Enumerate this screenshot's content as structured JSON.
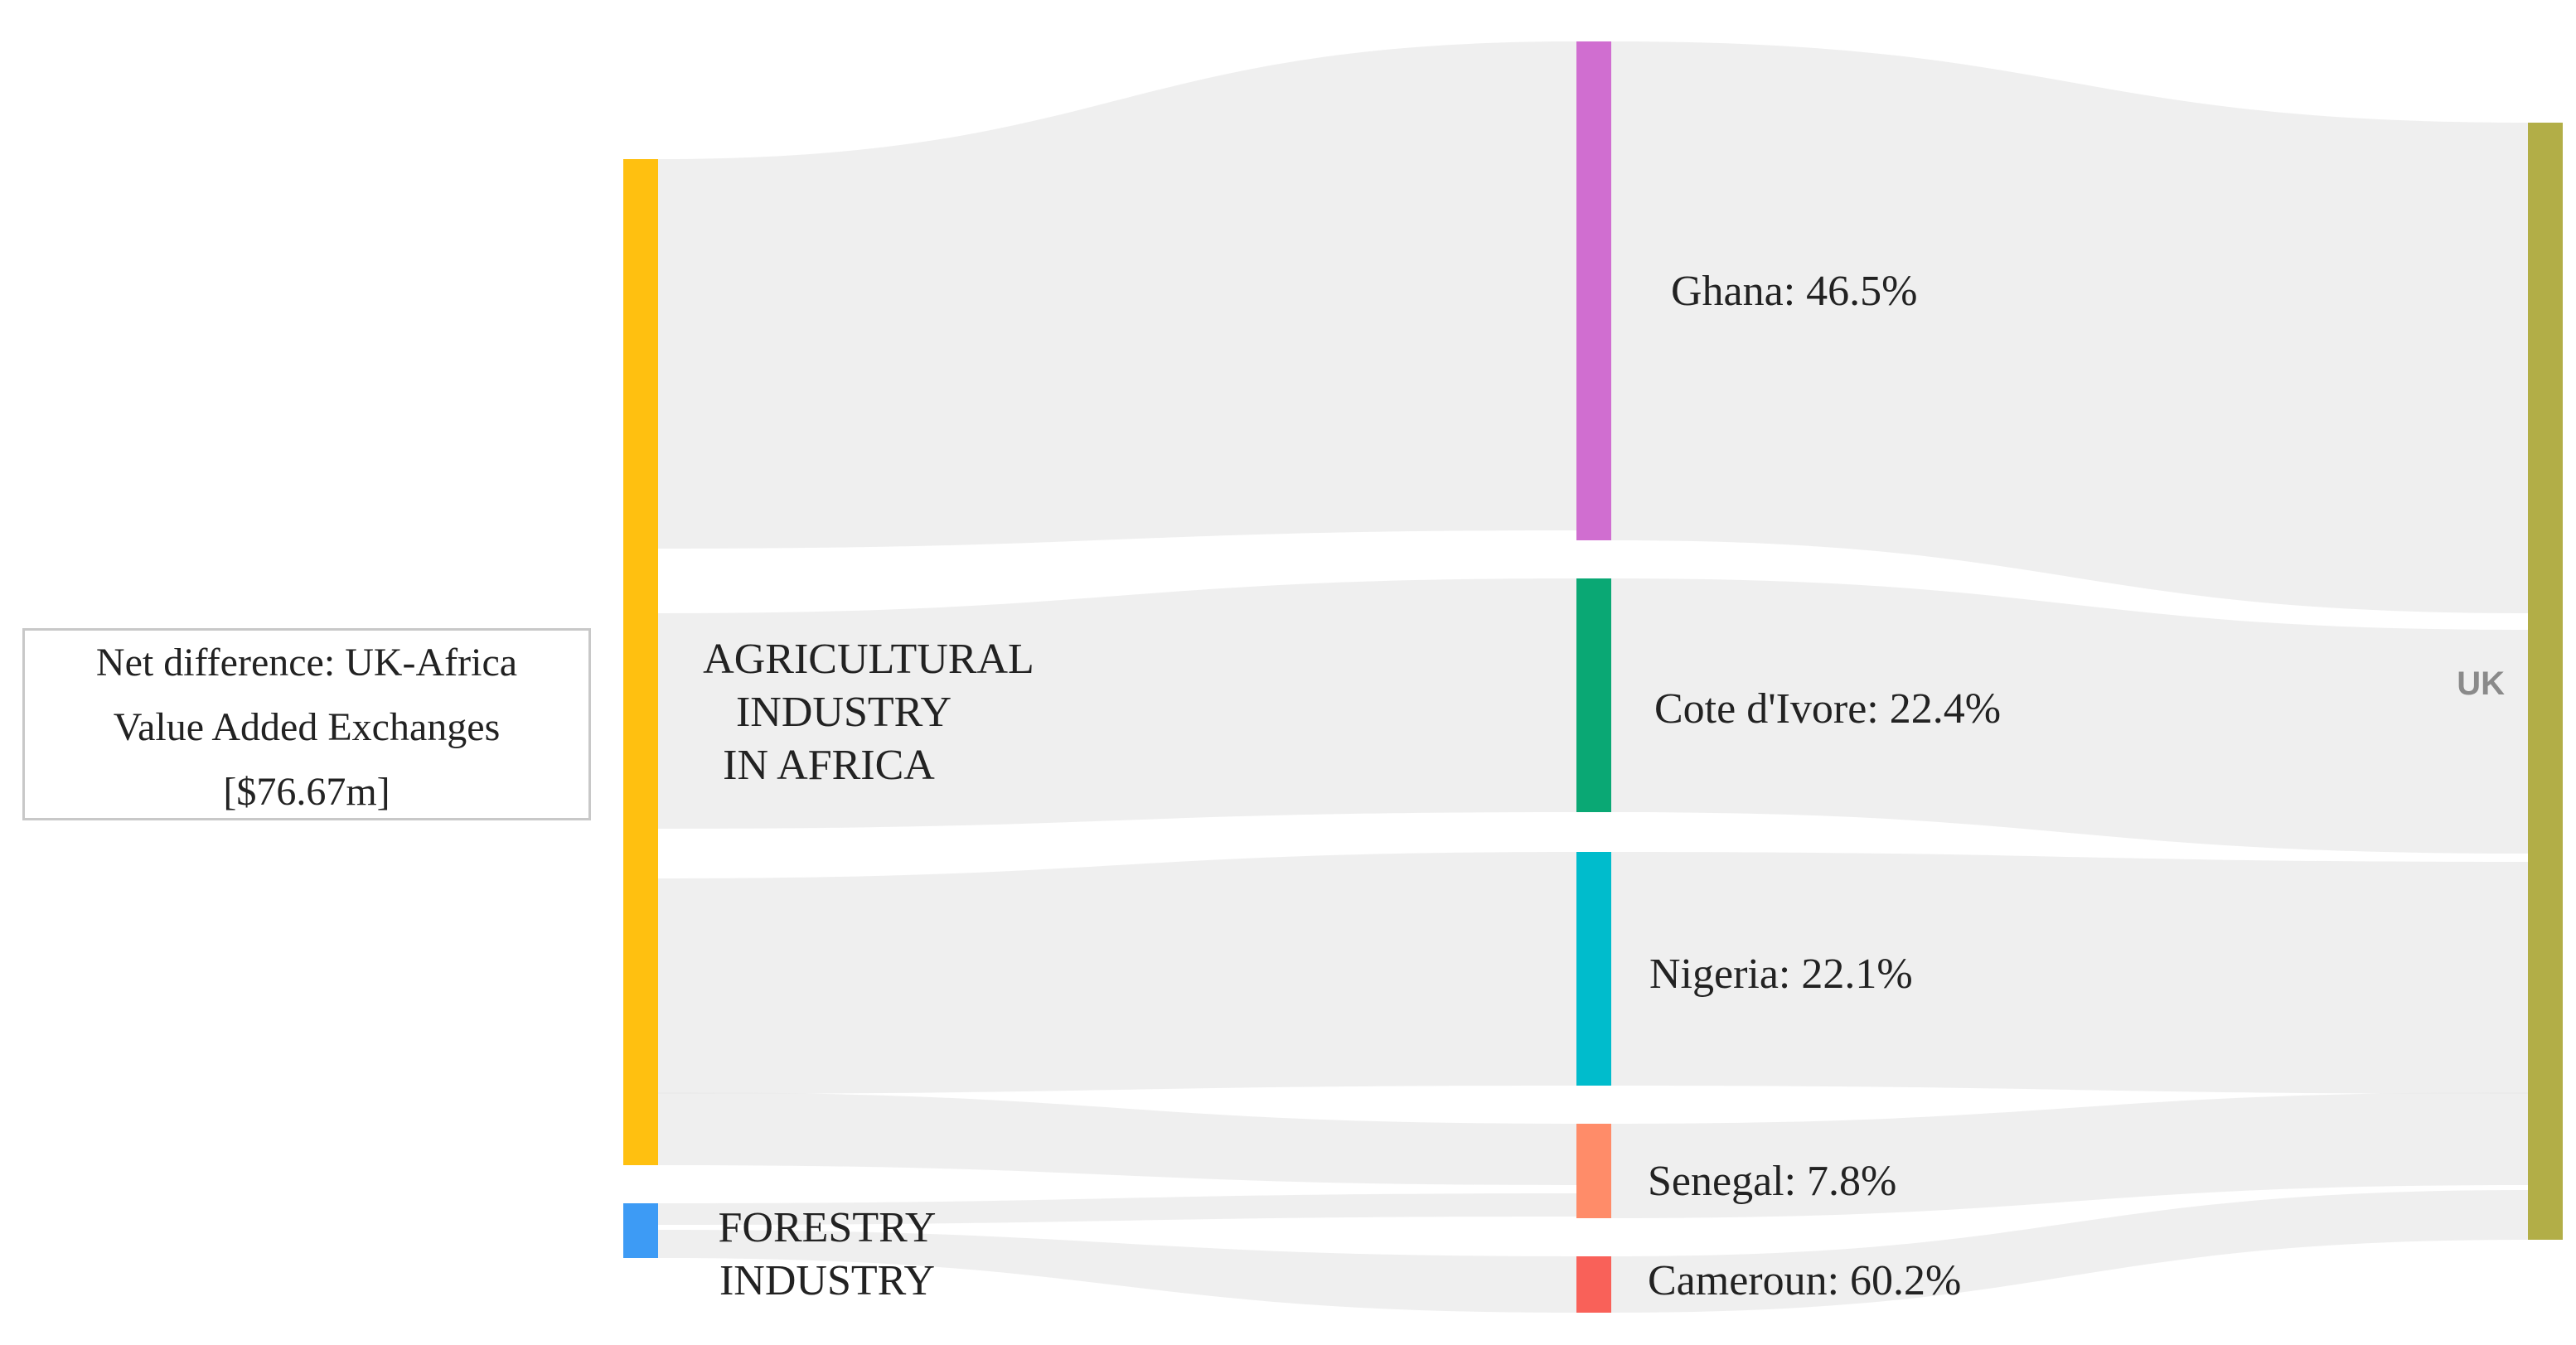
{
  "info_box": {
    "line1": "Net difference: UK-Africa",
    "line2": "Value Added Exchanges",
    "line3": "[$76.67m]"
  },
  "chart_data": {
    "type": "sankey",
    "title": "Net difference: UK-Africa Value Added Exchanges [$76.67m]",
    "nodes": [
      {
        "id": "agri",
        "label_lines": [
          "AGRICULTURAL",
          "INDUSTRY",
          "IN AFRICA"
        ],
        "color": "#FFC010"
      },
      {
        "id": "forestry",
        "label_lines": [
          "FORESTRY",
          "INDUSTRY"
        ],
        "color": "#3D9BF5"
      },
      {
        "id": "ghana",
        "label": "Ghana: 46.5%",
        "color": "#D06ED0"
      },
      {
        "id": "cote",
        "label": "Cote d'Ivore: 22.4%",
        "color": "#0AA874"
      },
      {
        "id": "nigeria",
        "label": "Nigeria: 22.1%",
        "color": "#00BCCC"
      },
      {
        "id": "senegal",
        "label": "Senegal: 7.8%",
        "color": "#FF8C69"
      },
      {
        "id": "cameroun",
        "label": "Cameroun:  60.2%",
        "color": "#F96159"
      },
      {
        "id": "uk",
        "label": "UK",
        "color": "#B2AE47"
      }
    ],
    "links": [
      {
        "source": "agri",
        "target": "ghana",
        "share_pct": 46.5
      },
      {
        "source": "agri",
        "target": "cote",
        "share_pct": 22.4
      },
      {
        "source": "agri",
        "target": "nigeria",
        "share_pct": 22.1
      },
      {
        "source": "agri",
        "target": "senegal",
        "share_pct": 7.8
      },
      {
        "source": "forestry",
        "target": "senegal"
      },
      {
        "source": "forestry",
        "target": "cameroun",
        "share_pct": 60.2
      },
      {
        "source": "ghana",
        "target": "uk"
      },
      {
        "source": "cote",
        "target": "uk"
      },
      {
        "source": "nigeria",
        "target": "uk"
      },
      {
        "source": "senegal",
        "target": "uk"
      },
      {
        "source": "cameroun",
        "target": "uk"
      }
    ]
  }
}
